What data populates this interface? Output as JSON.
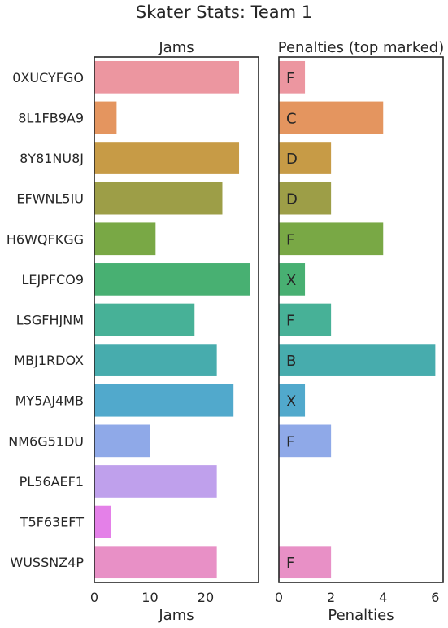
{
  "chart_data": {
    "title": "Skater Stats: Team 1",
    "type": "bar",
    "orientation": "horizontal",
    "categories": [
      "0XUCYFGO",
      "8L1FB9A9",
      "8Y81NU8J",
      "EFWNL5IU",
      "H6WQFKGG",
      "LEJPFCO9",
      "LSGFHJNM",
      "MBJ1RDOX",
      "MY5AJ4MB",
      "NM6G51DU",
      "PL56AEF1",
      "T5F63EFT",
      "WUSSNZ4P"
    ],
    "colors": [
      "#ec96a0",
      "#e4955f",
      "#c79b46",
      "#9d9e47",
      "#79a845",
      "#48b072",
      "#47b197",
      "#47acad",
      "#51a9cc",
      "#8fa9e8",
      "#bfa0ec",
      "#e480e8",
      "#e890c6"
    ],
    "panels": [
      {
        "subtitle": "Jams",
        "xlabel": "Jams",
        "xlim": [
          0,
          29.5
        ],
        "xticks": [
          0,
          10,
          20
        ],
        "values": [
          26,
          4,
          26,
          23,
          11,
          28,
          18,
          22,
          25,
          10,
          22,
          3,
          22
        ],
        "bar_labels": []
      },
      {
        "subtitle": "Penalties (top marked)",
        "xlabel": "Penalties",
        "xlim": [
          0,
          6.3
        ],
        "xticks": [
          0,
          2,
          4,
          6
        ],
        "values": [
          1,
          4,
          2,
          2,
          4,
          1,
          2,
          6,
          1,
          2,
          0,
          0,
          2
        ],
        "bar_labels": [
          "F",
          "C",
          "D",
          "D",
          "F",
          "X",
          "F",
          "B",
          "X",
          "F",
          "",
          "",
          "F"
        ]
      }
    ],
    "grid": false,
    "legend": "none"
  }
}
